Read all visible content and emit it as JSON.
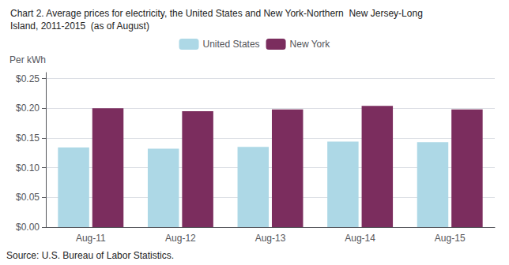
{
  "chart_data": {
    "type": "bar",
    "title": "Chart 2. Average prices for electricity, the United States and New York-Northern  New Jersey-Long",
    "subtitle": "Island, 2011-2015  (as of August)",
    "ylabel": "Per kWh",
    "source": "Source: U.S. Bureau of Labor Statistics.",
    "categories": [
      "Aug-11",
      "Aug-12",
      "Aug-13",
      "Aug-14",
      "Aug-15"
    ],
    "series": [
      {
        "name": "United States",
        "color": "#ADD8E6",
        "values": [
          0.134,
          0.132,
          0.135,
          0.144,
          0.143
        ]
      },
      {
        "name": "New York",
        "color": "#7B2D5E",
        "values": [
          0.2,
          0.195,
          0.198,
          0.204,
          0.198
        ]
      }
    ],
    "ylim": [
      0,
      0.26
    ],
    "yticks": [
      {
        "value": 0.0,
        "label": "$0.00"
      },
      {
        "value": 0.05,
        "label": "$0.05"
      },
      {
        "value": 0.1,
        "label": "$0.10"
      },
      {
        "value": 0.15,
        "label": "$0.15"
      },
      {
        "value": 0.2,
        "label": "$0.20"
      },
      {
        "value": 0.25,
        "label": "$0.25"
      }
    ],
    "grid": true,
    "legend": "top"
  }
}
